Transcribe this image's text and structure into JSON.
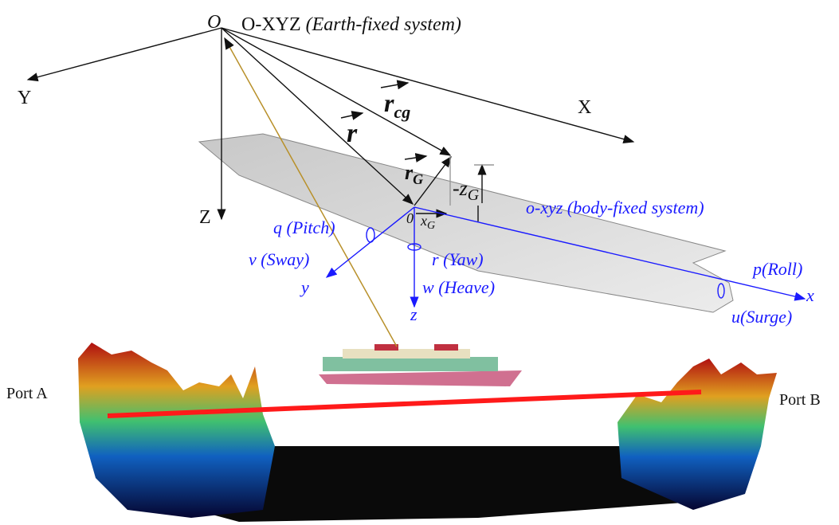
{
  "earth_frame": {
    "origin": "O",
    "label": "O-XYZ",
    "description": "(Earth-fixed system)",
    "axes": [
      "X",
      "Y",
      "Z"
    ]
  },
  "vectors": [
    {
      "symbol": "r"
    },
    {
      "symbol": "r",
      "subscript": "cg"
    },
    {
      "symbol": "r",
      "subscript": "G"
    }
  ],
  "offsets": [
    {
      "symbol": "-z",
      "subscript": "G"
    },
    {
      "symbol": "x",
      "subscript": "G"
    }
  ],
  "body_frame": {
    "origin": "0",
    "label": "o-xyz (body-fixed system)",
    "axes": [
      "x",
      "y",
      "z"
    ]
  },
  "motions": [
    {
      "symbol": "q",
      "name": "(Pitch)"
    },
    {
      "symbol": "v",
      "name": "(Sway)"
    },
    {
      "symbol": "r",
      "name": "(Yaw)"
    },
    {
      "symbol": "w",
      "name": "(Heave)"
    },
    {
      "symbol": "p",
      "name": "(Roll)"
    },
    {
      "symbol": "u",
      "name": "(Surge)"
    }
  ],
  "ports": [
    "Port A",
    "Port B"
  ]
}
